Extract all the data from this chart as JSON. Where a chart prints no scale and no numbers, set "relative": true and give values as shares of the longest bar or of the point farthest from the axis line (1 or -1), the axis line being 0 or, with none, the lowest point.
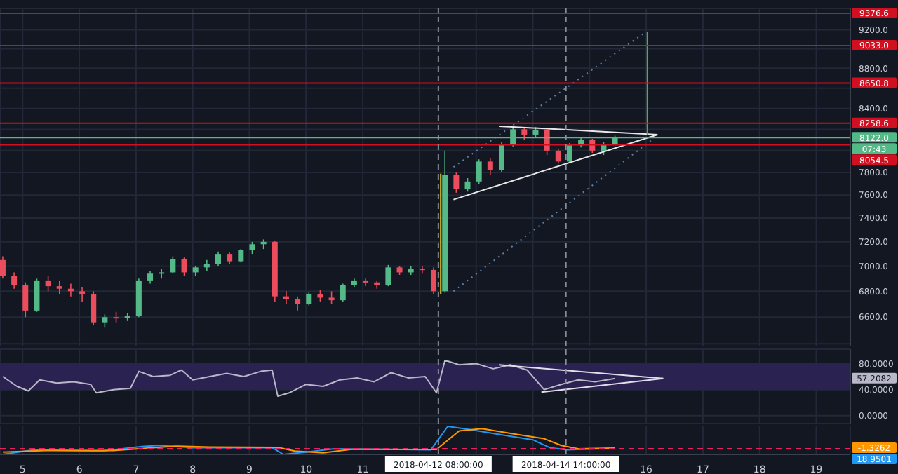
{
  "chart_data": [
    {
      "type": "candlestick",
      "log": true,
      "grid": true,
      "tick_labels": "y",
      "xlim": [
        "2018-04-04T14:24",
        "2018-04-19T14:24"
      ],
      "xticks": [
        {
          "value": "2018-04-05",
          "label": null
        },
        {
          "value": "2018-04-06",
          "label": null
        },
        {
          "value": "2018-04-07",
          "label": null
        },
        {
          "value": "2018-04-08",
          "label": null
        },
        {
          "value": "2018-04-09",
          "label": null
        },
        {
          "value": "2018-04-10",
          "label": null
        },
        {
          "value": "2018-04-11",
          "label": null
        },
        {
          "value": "2018-04-12",
          "label": null
        },
        {
          "value": "2018-04-13",
          "label": null
        },
        {
          "value": "2018-04-14",
          "label": null
        },
        {
          "value": "2018-04-15",
          "label": null
        },
        {
          "value": "2018-04-16",
          "label": null
        },
        {
          "value": "2018-04-17",
          "label": null
        },
        {
          "value": "2018-04-18",
          "label": null
        },
        {
          "value": "2018-04-19",
          "label": null
        }
      ],
      "ylim": [
        6380,
        9430
      ],
      "yticks": [
        {
          "value": 6400,
          "label": null
        },
        "6600.0",
        "6800.0",
        "7000.0",
        "7200.0",
        "7400.0",
        "7600.0",
        "7800.0",
        {
          "value": 8000,
          "label": null
        },
        {
          "value": 8200,
          "label": null
        },
        "8400.0",
        {
          "value": 8600,
          "label": null
        },
        "8800.0",
        {
          "value": 9000,
          "label": null
        },
        "9200.0"
      ],
      "x": [
        "2018-04-04T15:36",
        "2018-04-04T20:24",
        "2018-04-05T01:12",
        "2018-04-05T06:00",
        "2018-04-05T10:48",
        "2018-04-05T15:36",
        "2018-04-05T20:24",
        "2018-04-06T01:12",
        "2018-04-06T06:00",
        "2018-04-06T10:48",
        "2018-04-06T15:36",
        "2018-04-06T20:24",
        "2018-04-07T01:12",
        "2018-04-07T06:00",
        "2018-04-07T10:48",
        "2018-04-07T15:36",
        "2018-04-07T20:24",
        "2018-04-08T01:12",
        "2018-04-08T06:00",
        "2018-04-08T10:48",
        "2018-04-08T15:36",
        "2018-04-08T20:24",
        "2018-04-09T01:12",
        "2018-04-09T06:00",
        "2018-04-09T10:48",
        "2018-04-09T15:36",
        "2018-04-09T20:24",
        "2018-04-10T01:12",
        "2018-04-10T06:00",
        "2018-04-10T10:48",
        "2018-04-10T15:36",
        "2018-04-10T20:24",
        "2018-04-11T01:12",
        "2018-04-11T06:00",
        "2018-04-11T10:48",
        "2018-04-11T15:36",
        "2018-04-11T20:24",
        "2018-04-12T01:12",
        "2018-04-12T06:00",
        "2018-04-12T10:48",
        "2018-04-12T15:36",
        "2018-04-12T20:24",
        "2018-04-13T01:12",
        "2018-04-13T06:00",
        "2018-04-13T10:48",
        "2018-04-13T15:36",
        "2018-04-13T20:24",
        "2018-04-14T01:12",
        "2018-04-14T06:00",
        "2018-04-14T10:48",
        "2018-04-14T15:36",
        "2018-04-14T20:24",
        "2018-04-15T01:12",
        "2018-04-15T06:00",
        "2018-04-15T10:48"
      ],
      "ohlc": [
        [
          7050,
          7080,
          6900,
          6920
        ],
        [
          6920,
          6950,
          6820,
          6850
        ],
        [
          6850,
          6870,
          6600,
          6650
        ],
        [
          6650,
          6900,
          6640,
          6880
        ],
        [
          6880,
          6920,
          6800,
          6840
        ],
        [
          6840,
          6880,
          6780,
          6820
        ],
        [
          6820,
          6860,
          6760,
          6800
        ],
        [
          6800,
          6830,
          6720,
          6780
        ],
        [
          6780,
          6800,
          6540,
          6560
        ],
        [
          6560,
          6620,
          6520,
          6600
        ],
        [
          6600,
          6640,
          6560,
          6590
        ],
        [
          6590,
          6630,
          6570,
          6610
        ],
        [
          6610,
          6900,
          6600,
          6880
        ],
        [
          6880,
          6960,
          6860,
          6940
        ],
        [
          6940,
          6980,
          6900,
          6950
        ],
        [
          6950,
          7080,
          6940,
          7060
        ],
        [
          7060,
          7070,
          6920,
          6950
        ],
        [
          6950,
          7000,
          6920,
          6990
        ],
        [
          6990,
          7050,
          6960,
          7020
        ],
        [
          7020,
          7120,
          7000,
          7100
        ],
        [
          7100,
          7110,
          7020,
          7040
        ],
        [
          7040,
          7140,
          7030,
          7130
        ],
        [
          7130,
          7200,
          7100,
          7180
        ],
        [
          7180,
          7220,
          7140,
          7200
        ],
        [
          7200,
          7210,
          6720,
          6760
        ],
        [
          6760,
          6800,
          6700,
          6740
        ],
        [
          6740,
          6760,
          6650,
          6700
        ],
        [
          6700,
          6790,
          6690,
          6780
        ],
        [
          6780,
          6810,
          6720,
          6750
        ],
        [
          6750,
          6800,
          6700,
          6730
        ],
        [
          6730,
          6860,
          6720,
          6850
        ],
        [
          6850,
          6900,
          6830,
          6880
        ],
        [
          6880,
          6900,
          6840,
          6870
        ],
        [
          6870,
          6880,
          6820,
          6850
        ],
        [
          6850,
          7010,
          6840,
          6990
        ],
        [
          6990,
          7000,
          6930,
          6950
        ],
        [
          6950,
          7000,
          6930,
          6980
        ],
        [
          6980,
          7000,
          6940,
          6970
        ],
        [
          6970,
          6990,
          6780,
          6800
        ],
        [
          6800,
          8000,
          6790,
          7780
        ],
        [
          7780,
          7800,
          7620,
          7650
        ],
        [
          7650,
          7750,
          7630,
          7720
        ],
        [
          7720,
          7920,
          7700,
          7900
        ],
        [
          7900,
          7930,
          7780,
          7820
        ],
        [
          7820,
          8080,
          7800,
          8060
        ],
        [
          8060,
          8230,
          8040,
          8200
        ],
        [
          8200,
          8220,
          8100,
          8150
        ],
        [
          8150,
          8220,
          8130,
          8190
        ],
        [
          8190,
          8200,
          7960,
          8000
        ],
        [
          8000,
          8020,
          7880,
          7900
        ],
        [
          7900,
          8070,
          7890,
          8050
        ],
        [
          8050,
          8120,
          8030,
          8100
        ],
        [
          8100,
          8110,
          7980,
          8000
        ],
        [
          8000,
          8080,
          7960,
          8060
        ],
        [
          8060,
          8140,
          8050,
          8122
        ]
      ],
      "colors": [
        "#eb4d5c",
        "#eb4d5c",
        "#eb4d5c",
        "#53b987",
        "#eb4d5c",
        "#eb4d5c",
        "#eb4d5c",
        "#eb4d5c",
        "#eb4d5c",
        "#53b987",
        "#eb4d5c",
        "#53b987",
        "#53b987",
        "#53b987",
        "#53b987",
        "#53b987",
        "#eb4d5c",
        "#53b987",
        "#53b987",
        "#53b987",
        "#eb4d5c",
        "#53b987",
        "#53b987",
        "#53b987",
        "#eb4d5c",
        "#eb4d5c",
        "#eb4d5c",
        "#53b987",
        "#eb4d5c",
        "#eb4d5c",
        "#53b987",
        "#53b987",
        "#eb4d5c",
        "#eb4d5c",
        "#53b987",
        "#eb4d5c",
        "#53b987",
        "#eb4d5c",
        "#eb4d5c",
        "#53b987",
        "#eb4d5c",
        "#53b987",
        "#53b987",
        "#eb4d5c",
        "#53b987",
        "#53b987",
        "#eb4d5c",
        "#53b987",
        "#eb4d5c",
        "#eb4d5c",
        "#53b987",
        "#53b987",
        "#eb4d5c",
        "#53b987",
        "#53b987"
      ],
      "series": [
        {
          "type": "line",
          "color": "#e8e8e8",
          "x": [
            "2018-04-13T09:36",
            "2018-04-16T04:48"
          ],
          "values": [
            8230,
            8150
          ]
        },
        {
          "type": "line",
          "color": "#e8e8e8",
          "x": [
            "2018-04-12T14:24",
            "2018-04-16T04:48"
          ],
          "values": [
            7560,
            8150
          ]
        },
        {
          "type": "line",
          "color": "#f0d020",
          "x": [
            "2018-04-12T09:00",
            "2018-04-12T09:00"
          ],
          "values": [
            6780,
            7790
          ]
        },
        {
          "type": "line",
          "color": "#4caf50",
          "x": [
            "2018-04-16T00:30",
            "2018-04-16T00:30"
          ],
          "values": [
            8150,
            9180
          ]
        },
        {
          "type": "line",
          "color": "#5d7fa8",
          "line_style": "dotted",
          "x": [
            "2018-04-12T14:24",
            "2018-04-16T00:00"
          ],
          "values": [
            7850,
            9180
          ]
        },
        {
          "type": "line",
          "color": "#5d7fa8",
          "line_style": "dotted",
          "x": [
            "2018-04-12T14:24",
            "2018-04-16T02:24"
          ],
          "values": [
            6800,
            8100
          ]
        }
      ],
      "ref_lines": [
        {
          "axis": "y",
          "value": 9376.6,
          "label": "9376.6",
          "color": "#d01020"
        },
        {
          "axis": "y",
          "value": 9033.0,
          "label": "9033.0",
          "color": "#d01020"
        },
        {
          "axis": "y",
          "value": 8650.8,
          "label": "8650.8",
          "color": "#d01020"
        },
        {
          "axis": "y",
          "value": 8258.6,
          "label": "8258.6",
          "color": "#d01020"
        },
        {
          "axis": "y",
          "value": 8054.5,
          "label": "8054.5",
          "color": "#d01020"
        },
        {
          "axis": "x",
          "value": "2018-04-12T08:00",
          "color": "#8a8e99",
          "line_style": "dashed"
        },
        {
          "axis": "x",
          "value": "2018-04-14T14:00",
          "color": "#8a8e99",
          "line_style": "dashed"
        },
        {
          "axis": "y",
          "value": 8122.0,
          "label": "8122.0",
          "color": "#53b987"
        }
      ],
      "annotations": [
        "07:43"
      ]
    },
    {
      "type": "line",
      "grid": true,
      "tick_labels": "y",
      "xlim": [
        "2018-04-04T14:24",
        "2018-04-19T14:24"
      ],
      "xticks": [
        {
          "value": "2018-04-05",
          "label": null
        },
        {
          "value": "2018-04-06",
          "label": null
        },
        {
          "value": "2018-04-07",
          "label": null
        },
        {
          "value": "2018-04-08",
          "label": null
        },
        {
          "value": "2018-04-09",
          "label": null
        },
        {
          "value": "2018-04-10",
          "label": null
        },
        {
          "value": "2018-04-11",
          "label": null
        },
        {
          "value": "2018-04-12",
          "label": null
        },
        {
          "value": "2018-04-13",
          "label": null
        },
        {
          "value": "2018-04-14",
          "label": null
        },
        {
          "value": "2018-04-15",
          "label": null
        },
        {
          "value": "2018-04-16",
          "label": null
        },
        {
          "value": "2018-04-17",
          "label": null
        },
        {
          "value": "2018-04-18",
          "label": null
        },
        {
          "value": "2018-04-19",
          "label": null
        }
      ],
      "ylim": [
        -12,
        102
      ],
      "yticks": [
        {
          "value": 0,
          "label": "0.0000"
        },
        {
          "value": 40,
          "label": "40.0000"
        },
        {
          "value": 80,
          "label": "80.0000"
        }
      ],
      "bands": [
        {
          "axis": "y",
          "from": 40,
          "to": 80,
          "color": "#2a2250"
        }
      ],
      "ref_lines": [
        {
          "axis": "x",
          "value": "2018-04-12T08:00",
          "color": "#8a8e99",
          "line_style": "dashed"
        },
        {
          "axis": "x",
          "value": "2018-04-14T14:00",
          "color": "#8a8e99",
          "line_style": "dashed"
        }
      ],
      "series": [
        {
          "color": "#b8b8c8",
          "x": [
            "2018-04-04T15:36",
            "2018-04-04T21:36",
            "2018-04-05T02:24",
            "2018-04-05T07:12",
            "2018-04-05T14:24",
            "2018-04-05T21:36",
            "2018-04-06T04:48",
            "2018-04-06T07:12",
            "2018-04-06T14:24",
            "2018-04-06T21:36",
            "2018-04-07T01:12",
            "2018-04-07T07:12",
            "2018-04-07T14:24",
            "2018-04-07T19:12",
            "2018-04-08T00:00",
            "2018-04-08T07:12",
            "2018-04-08T14:24",
            "2018-04-08T21:36",
            "2018-04-09T04:48",
            "2018-04-09T09:36",
            "2018-04-09T12:00",
            "2018-04-09T16:48",
            "2018-04-10T00:00",
            "2018-04-10T07:12",
            "2018-04-10T14:24",
            "2018-04-10T21:36",
            "2018-04-11T04:48",
            "2018-04-11T12:00",
            "2018-04-11T19:12",
            "2018-04-12T02:24",
            "2018-04-12T07:12",
            "2018-04-12T10:48",
            "2018-04-12T16:48",
            "2018-04-13T00:00",
            "2018-04-13T07:12",
            "2018-04-13T14:24",
            "2018-04-13T21:36",
            "2018-04-14T04:48",
            "2018-04-14T12:00",
            "2018-04-14T19:12",
            "2018-04-15T02:24",
            "2018-04-15T10:48"
          ],
          "values": [
            60,
            45,
            38,
            55,
            50,
            52,
            48,
            35,
            40,
            42,
            68,
            60,
            62,
            70,
            55,
            60,
            65,
            60,
            68,
            70,
            30,
            35,
            48,
            45,
            55,
            58,
            52,
            66,
            58,
            60,
            35,
            85,
            78,
            80,
            72,
            78,
            70,
            40,
            48,
            55,
            52,
            57.2082
          ]
        },
        {
          "color": "#e0e0e8",
          "x": [
            "2018-04-13T09:36",
            "2018-04-16T07:12"
          ],
          "values": [
            78,
            57
          ]
        },
        {
          "color": "#e0e0e8",
          "x": [
            "2018-04-14T03:36",
            "2018-04-16T07:12"
          ],
          "values": [
            36,
            57
          ]
        }
      ],
      "annotations": [
        "57.2082"
      ]
    },
    {
      "type": "line",
      "relative": true,
      "grid": "x",
      "tick_labels": "x",
      "xlim": [
        "2018-04-04T14:24",
        "2018-04-19T14:24"
      ],
      "xticks": [
        {
          "value": "2018-04-05",
          "label": "5"
        },
        {
          "value": "2018-04-06",
          "label": "6"
        },
        {
          "value": "2018-04-07",
          "label": "7"
        },
        {
          "value": "2018-04-08",
          "label": "8"
        },
        {
          "value": "2018-04-09",
          "label": "9"
        },
        {
          "value": "2018-04-10",
          "label": "10"
        },
        {
          "value": "2018-04-11",
          "label": "11"
        },
        {
          "value": "2018-04-12",
          "label": null
        },
        {
          "value": "2018-04-13",
          "label": null
        },
        {
          "value": "2018-04-14",
          "label": null
        },
        {
          "value": "2018-04-15",
          "label": null
        },
        {
          "value": "2018-04-16",
          "label": "16"
        },
        {
          "value": "2018-04-17",
          "label": "17"
        },
        {
          "value": "2018-04-18",
          "label": "18"
        },
        {
          "value": "2018-04-19",
          "label": "19"
        }
      ],
      "ref_lines": [
        {
          "axis": "y",
          "value": 0,
          "color": "#e91e63",
          "line_style": "dashed"
        },
        {
          "axis": "x",
          "value": "2018-04-12T08:00",
          "label": "2018-04-12 08:00:00",
          "color": "#8a8e99",
          "line_style": "dashed"
        },
        {
          "axis": "x",
          "value": "2018-04-14T14:00",
          "label": "2018-04-14 14:00:00",
          "color": "#8a8e99",
          "line_style": "dashed"
        }
      ],
      "series": [
        {
          "color": "#2196f3",
          "x": [
            "2018-04-04T15:36",
            "2018-04-05T04:48",
            "2018-04-06T09:36",
            "2018-04-07T02:24",
            "2018-04-07T09:36",
            "2018-04-08T00:00",
            "2018-04-09T09:36",
            "2018-04-09T14:24",
            "2018-04-10T00:00",
            "2018-04-10T12:00",
            "2018-04-12T04:48",
            "2018-04-12T12:00",
            "2018-04-12T21:36",
            "2018-04-13T12:00",
            "2018-04-14T00:00",
            "2018-04-14T07:12",
            "2018-04-14T14:24",
            "2018-04-15T10:48"
          ],
          "values": [
            -0.25,
            -0.05,
            -0.1,
            0.1,
            0.15,
            0.05,
            0.05,
            -0.25,
            -0.15,
            0,
            -0.05,
            1,
            0.85,
            0.6,
            0.4,
            0.05,
            -0.05,
            0.02
          ]
        },
        {
          "color": "#ff9800",
          "x": [
            "2018-04-04T15:36",
            "2018-04-05T09:36",
            "2018-04-06T14:24",
            "2018-04-07T07:12",
            "2018-04-07T16:48",
            "2018-04-08T07:12",
            "2018-04-09T12:00",
            "2018-04-09T19:12",
            "2018-04-10T07:12",
            "2018-04-10T19:12",
            "2018-04-12T07:12",
            "2018-04-12T16:48",
            "2018-04-13T02:24",
            "2018-04-13T16:48",
            "2018-04-14T04:48",
            "2018-04-14T12:00",
            "2018-04-14T19:12",
            "2018-04-15T10:48"
          ],
          "values": [
            -0.15,
            -0.08,
            -0.08,
            0.05,
            0.12,
            0.08,
            0.06,
            -0.1,
            -0.18,
            -0.02,
            -0.03,
            0.8,
            0.9,
            0.65,
            0.45,
            0.15,
            0,
            0.03
          ]
        }
      ],
      "annotations": [
        "18.9501",
        "-1.3262"
      ]
    }
  ]
}
